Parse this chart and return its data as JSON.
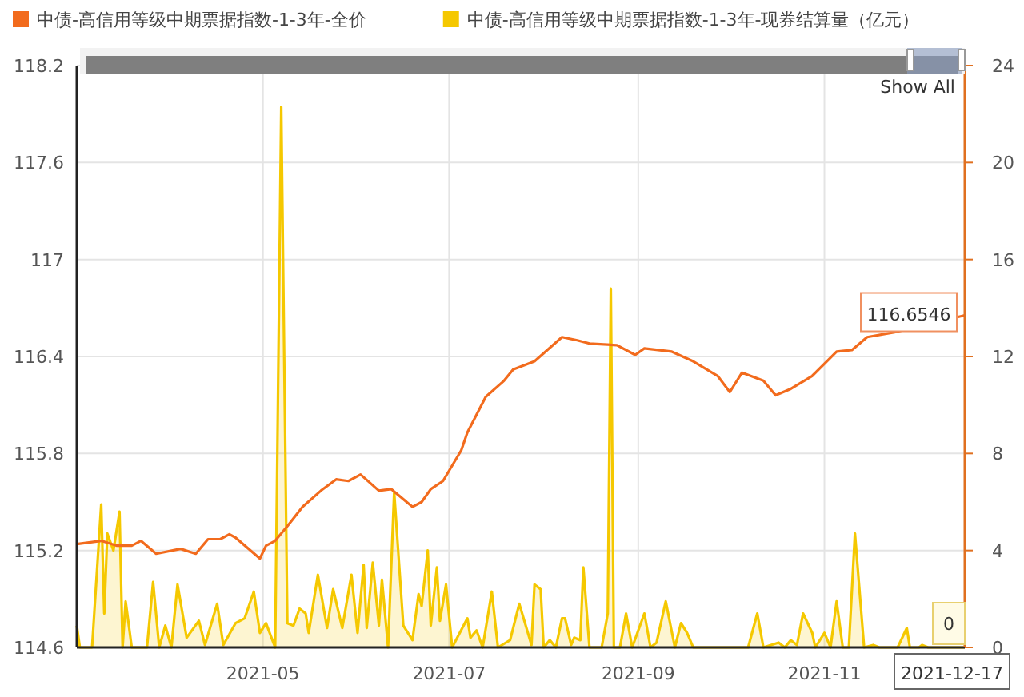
{
  "chart_data": {
    "type": "line",
    "legend": "top",
    "grid": true,
    "marker": "none",
    "xlim": [
      "2021-03-01",
      "2021-12-17"
    ],
    "xticks": [
      {
        "value": "2021-05",
        "label": "2021-05"
      },
      {
        "value": "2021-07",
        "label": "2021-07"
      },
      {
        "value": "2021-09",
        "label": "2021-09"
      },
      {
        "value": "2021-11",
        "label": "2021-11"
      }
    ],
    "ylim": [
      114.6,
      118.2
    ],
    "yticks": [
      114.6,
      115.2,
      115.8,
      116.4,
      117,
      117.6,
      118.2
    ],
    "y2lim": [
      0,
      24
    ],
    "y2ticks": [
      0,
      4,
      8,
      12,
      16,
      20,
      24
    ],
    "series": [
      {
        "name": "中债-高信用等级中期票据指数-1-3年-全价",
        "color": "#f26b1d",
        "x": [
          "2021-03-01",
          "2021-03-09",
          "2021-03-14",
          "2021-03-19",
          "2021-03-22",
          "2021-03-27",
          "2021-04-04",
          "2021-04-09",
          "2021-04-13",
          "2021-04-17",
          "2021-04-20",
          "2021-04-22",
          "2021-04-30",
          "2021-05-02",
          "2021-05-05",
          "2021-05-09",
          "2021-05-14",
          "2021-05-20",
          "2021-05-25",
          "2021-05-29",
          "2021-06-02",
          "2021-06-08",
          "2021-06-12",
          "2021-06-19",
          "2021-06-22",
          "2021-06-25",
          "2021-06-29",
          "2021-07-05",
          "2021-07-07",
          "2021-07-13",
          "2021-07-19",
          "2021-07-22",
          "2021-07-29",
          "2021-08-07",
          "2021-08-12",
          "2021-08-16",
          "2021-08-25",
          "2021-08-31",
          "2021-09-03",
          "2021-09-12",
          "2021-09-19",
          "2021-09-27",
          "2021-10-01",
          "2021-10-05",
          "2021-10-12",
          "2021-10-16",
          "2021-10-21",
          "2021-10-28",
          "2021-11-05",
          "2021-11-10",
          "2021-11-15",
          "2021-11-24",
          "2021-12-17"
        ],
        "values": [
          115.24,
          115.26,
          115.23,
          115.23,
          115.26,
          115.18,
          115.21,
          115.18,
          115.27,
          115.27,
          115.3,
          115.28,
          115.15,
          115.23,
          115.26,
          115.35,
          115.47,
          115.57,
          115.64,
          115.63,
          115.67,
          115.57,
          115.58,
          115.47,
          115.5,
          115.58,
          115.63,
          115.82,
          115.93,
          116.15,
          116.25,
          116.32,
          116.37,
          116.52,
          116.5,
          116.48,
          116.47,
          116.41,
          116.45,
          116.43,
          116.37,
          116.28,
          116.18,
          116.3,
          116.25,
          116.16,
          116.2,
          116.28,
          116.43,
          116.44,
          116.52,
          116.55,
          116.6546
        ]
      },
      {
        "name": "中债-高信用等级中期票据指数-1-3年-现券结算量（亿元）",
        "type": "area",
        "axis": "y2",
        "color": "#f5c800",
        "x": [
          "2021-03-01",
          "2021-03-02",
          "2021-03-06",
          "2021-03-09",
          "2021-03-10",
          "2021-03-11",
          "2021-03-13",
          "2021-03-15",
          "2021-03-16",
          "2021-03-17",
          "2021-03-19",
          "2021-03-24",
          "2021-03-26",
          "2021-03-28",
          "2021-03-30",
          "2021-04-01",
          "2021-04-03",
          "2021-04-06",
          "2021-04-10",
          "2021-04-12",
          "2021-04-16",
          "2021-04-18",
          "2021-04-22",
          "2021-04-25",
          "2021-04-28",
          "2021-04-30",
          "2021-05-02",
          "2021-05-05",
          "2021-05-07",
          "2021-05-09",
          "2021-05-11",
          "2021-05-13",
          "2021-05-15",
          "2021-05-16",
          "2021-05-19",
          "2021-05-22",
          "2021-05-24",
          "2021-05-27",
          "2021-05-30",
          "2021-06-01",
          "2021-06-03",
          "2021-06-04",
          "2021-06-06",
          "2021-06-08",
          "2021-06-09",
          "2021-06-11",
          "2021-06-13",
          "2021-06-16",
          "2021-06-19",
          "2021-06-21",
          "2021-06-22",
          "2021-06-24",
          "2021-06-25",
          "2021-06-27",
          "2021-06-28",
          "2021-06-30",
          "2021-07-02",
          "2021-07-07",
          "2021-07-08",
          "2021-07-10",
          "2021-07-12",
          "2021-07-15",
          "2021-07-17",
          "2021-07-21",
          "2021-07-24",
          "2021-07-28",
          "2021-07-29",
          "2021-07-31",
          "2021-08-01",
          "2021-08-03",
          "2021-08-05",
          "2021-08-07",
          "2021-08-08",
          "2021-08-10",
          "2021-08-11",
          "2021-08-13",
          "2021-08-14",
          "2021-08-16",
          "2021-08-20",
          "2021-08-22",
          "2021-08-23",
          "2021-08-24",
          "2021-08-26",
          "2021-08-28",
          "2021-08-30",
          "2021-09-03",
          "2021-09-05",
          "2021-09-07",
          "2021-09-10",
          "2021-09-13",
          "2021-09-15",
          "2021-09-17",
          "2021-09-19",
          "2021-10-07",
          "2021-10-10",
          "2021-10-12",
          "2021-10-17",
          "2021-10-19",
          "2021-10-21",
          "2021-10-23",
          "2021-10-25",
          "2021-10-28",
          "2021-10-29",
          "2021-11-01",
          "2021-11-03",
          "2021-11-05",
          "2021-11-07",
          "2021-11-09",
          "2021-11-11",
          "2021-11-14",
          "2021-11-17",
          "2021-11-19",
          "2021-11-25",
          "2021-11-28",
          "2021-11-29",
          "2021-12-02",
          "2021-12-03",
          "2021-12-05",
          "2021-12-17"
        ],
        "values": [
          0.9,
          0,
          0,
          5.9,
          1.4,
          4.7,
          4.0,
          5.6,
          0,
          1.9,
          0,
          0,
          2.7,
          0,
          0.9,
          0,
          2.6,
          0.4,
          1.1,
          0.1,
          1.8,
          0.1,
          1.0,
          1.2,
          2.3,
          0.6,
          1.0,
          0,
          22.3,
          1.0,
          0.9,
          1.6,
          1.4,
          0.6,
          3.0,
          0.8,
          2.4,
          0.8,
          3.0,
          0.6,
          3.4,
          0.8,
          3.5,
          0.9,
          2.8,
          0,
          6.4,
          0.9,
          0.3,
          2.2,
          1.7,
          4.0,
          0.9,
          3.3,
          1.1,
          2.6,
          0,
          1.2,
          0.4,
          0.7,
          0,
          2.3,
          0,
          0.3,
          1.8,
          0.1,
          2.6,
          2.4,
          0,
          0.3,
          0,
          1.2,
          1.2,
          0.1,
          0.4,
          0.3,
          3.3,
          0,
          0,
          1.4,
          14.8,
          0,
          0,
          1.4,
          0,
          1.4,
          0,
          0.2,
          1.9,
          0,
          1.0,
          0.6,
          0,
          0,
          1.4,
          0,
          0.2,
          0,
          0.3,
          0.1,
          1.4,
          0.6,
          0,
          0.6,
          0,
          1.9,
          0,
          0,
          4.7,
          0,
          0.1,
          0,
          0,
          0.8,
          0,
          0,
          0.1,
          0,
          0
        ]
      }
    ],
    "annotations": [
      "Show All",
      {
        "text": "116.6546",
        "x": "2021-12-17",
        "y": 116.6546
      },
      {
        "text": "0",
        "x": "2021-12-17",
        "y": 114.6
      },
      "2021-12-17"
    ]
  }
}
